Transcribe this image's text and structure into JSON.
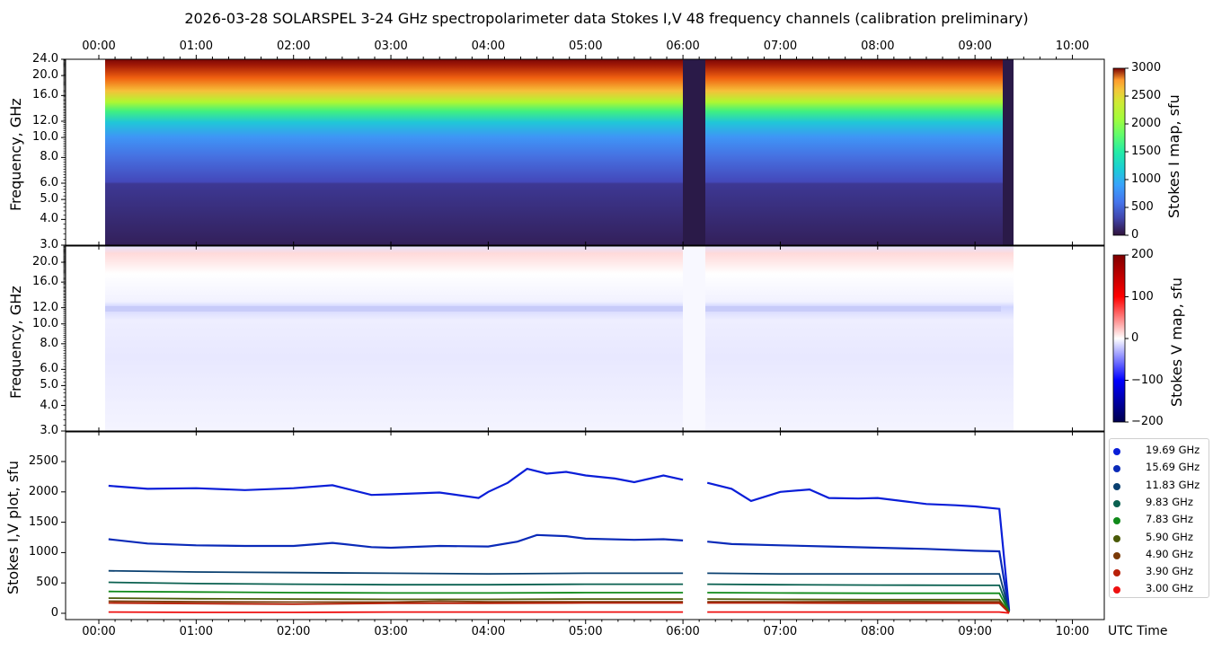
{
  "title": "2026-03-28  SOLARSPEL  3-24 GHz spectropolarimeter data   Stokes I,V   48 frequency channels   (calibration preliminary)",
  "x_axis_label": "UTC Time",
  "time_ticks": [
    "00:00",
    "01:00",
    "02:00",
    "03:00",
    "04:00",
    "05:00",
    "06:00",
    "07:00",
    "08:00",
    "09:00",
    "10:00"
  ],
  "panel1": {
    "ylabel": "Frequency, GHz",
    "yticks": [
      "3.0",
      "4.0",
      "5.0",
      "6.0",
      "8.0",
      "10.0",
      "12.0",
      "16.0",
      "20.0",
      "24.0"
    ],
    "colorbar_label": "Stokes I map, sfu",
    "colorbar_ticks": [
      "0",
      "500",
      "1000",
      "1500",
      "2000",
      "2500",
      "3000"
    ]
  },
  "panel2": {
    "ylabel": "Frequency, GHz",
    "yticks": [
      "3.0",
      "4.0",
      "5.0",
      "6.0",
      "8.0",
      "10.0",
      "12.0",
      "16.0",
      "20.0"
    ],
    "colorbar_label": "Stokes V map, sfu",
    "colorbar_ticks": [
      "200",
      "100",
      "0",
      "−100",
      "−200"
    ]
  },
  "panel3": {
    "ylabel": "Stokes I,V plot, sfu",
    "yticks": [
      "0",
      "500",
      "1000",
      "1500",
      "2000",
      "2500"
    ]
  },
  "legend": [
    {
      "label": "19.69 GHz",
      "color": "#0a1ed8"
    },
    {
      "label": "15.69 GHz",
      "color": "#0a2ab8"
    },
    {
      "label": "11.83 GHz",
      "color": "#0a4070"
    },
    {
      "label": "9.83 GHz",
      "color": "#0a6050"
    },
    {
      "label": "7.83 GHz",
      "color": "#108a1a"
    },
    {
      "label": "5.90 GHz",
      "color": "#4a5a08"
    },
    {
      "label": "4.90 GHz",
      "color": "#7a3a08"
    },
    {
      "label": "3.90 GHz",
      "color": "#b82008"
    },
    {
      "label": "3.00 GHz",
      "color": "#ee1010"
    }
  ],
  "chart_data": {
    "type": "line",
    "x_unit": "hours UTC",
    "xlim": [
      0,
      10
    ],
    "ylim": [
      0,
      2800
    ],
    "ylabel": "Stokes I,V plot, sfu",
    "data_gaps_hours": [
      [
        6.0,
        6.22
      ],
      [
        9.32,
        9.4
      ]
    ],
    "series": [
      {
        "name": "19.69 GHz",
        "x": [
          0.1,
          0.5,
          1.0,
          1.5,
          2.0,
          2.4,
          2.8,
          3.0,
          3.5,
          3.9,
          4.0,
          4.2,
          4.4,
          4.6,
          4.8,
          5.0,
          5.3,
          5.5,
          5.8,
          6.0,
          6.25,
          6.5,
          6.6,
          6.7,
          6.9,
          7.0,
          7.3,
          7.5,
          7.8,
          8.0,
          8.3,
          8.5,
          8.8,
          9.0,
          9.25,
          9.35
        ],
        "y": [
          2100,
          2050,
          2060,
          2030,
          2060,
          2110,
          1950,
          1960,
          1990,
          1900,
          2000,
          2150,
          2380,
          2300,
          2330,
          2270,
          2220,
          2160,
          2270,
          2200,
          2150,
          2050,
          1950,
          1850,
          1950,
          2000,
          2040,
          1900,
          1890,
          1900,
          1840,
          1800,
          1780,
          1760,
          1720,
          50
        ]
      },
      {
        "name": "15.69 GHz",
        "x": [
          0.1,
          0.5,
          1.0,
          1.5,
          2.0,
          2.4,
          2.8,
          3.0,
          3.5,
          4.0,
          4.3,
          4.5,
          4.8,
          5.0,
          5.5,
          5.8,
          6.0,
          6.25,
          6.5,
          7.0,
          7.5,
          8.0,
          8.5,
          9.0,
          9.25,
          9.35
        ],
        "y": [
          1220,
          1150,
          1120,
          1110,
          1110,
          1160,
          1090,
          1080,
          1110,
          1100,
          1180,
          1290,
          1270,
          1230,
          1210,
          1220,
          1200,
          1180,
          1140,
          1120,
          1100,
          1080,
          1060,
          1030,
          1020,
          40
        ]
      },
      {
        "name": "11.83 GHz",
        "x": [
          0.1,
          1.0,
          2.0,
          3.0,
          4.0,
          5.0,
          6.0,
          6.25,
          7.0,
          8.0,
          9.0,
          9.25,
          9.35
        ],
        "y": [
          700,
          680,
          670,
          660,
          650,
          660,
          660,
          660,
          650,
          650,
          650,
          650,
          30
        ]
      },
      {
        "name": "9.83 GHz",
        "x": [
          0.1,
          1.0,
          2.0,
          3.0,
          4.0,
          5.0,
          6.0,
          6.25,
          7.0,
          8.0,
          9.0,
          9.25,
          9.35
        ],
        "y": [
          510,
          490,
          480,
          470,
          470,
          480,
          480,
          480,
          470,
          465,
          460,
          460,
          25
        ]
      },
      {
        "name": "7.83 GHz",
        "x": [
          0.1,
          1.0,
          2.0,
          3.0,
          4.0,
          5.0,
          6.0,
          6.25,
          7.0,
          8.0,
          9.0,
          9.25,
          9.35
        ],
        "y": [
          360,
          350,
          340,
          335,
          335,
          340,
          340,
          340,
          335,
          330,
          330,
          330,
          20
        ]
      },
      {
        "name": "5.90 GHz",
        "x": [
          0.1,
          1.0,
          2.0,
          3.0,
          4.0,
          5.0,
          6.0,
          6.25,
          7.0,
          8.0,
          9.0,
          9.25,
          9.35
        ],
        "y": [
          250,
          240,
          235,
          230,
          230,
          235,
          235,
          235,
          230,
          225,
          225,
          225,
          15
        ]
      },
      {
        "name": "4.90 GHz",
        "x": [
          0.1,
          1.0,
          2.0,
          3.0,
          3.5,
          4.0,
          5.0,
          6.0,
          6.25,
          7.0,
          8.0,
          9.0,
          9.25,
          9.35
        ],
        "y": [
          200,
          190,
          185,
          185,
          200,
          190,
          190,
          190,
          190,
          190,
          195,
          190,
          190,
          10
        ]
      },
      {
        "name": "3.90 GHz",
        "x": [
          0.1,
          1.0,
          2.0,
          3.0,
          4.0,
          5.0,
          6.0,
          6.25,
          7.0,
          8.0,
          9.0,
          9.25,
          9.35
        ],
        "y": [
          170,
          160,
          150,
          165,
          165,
          170,
          170,
          170,
          170,
          165,
          165,
          165,
          8
        ]
      },
      {
        "name": "3.00 GHz",
        "x": [
          0.1,
          1.0,
          2.0,
          3.0,
          4.0,
          5.0,
          6.0,
          6.25,
          7.0,
          8.0,
          9.0,
          9.25,
          9.35
        ],
        "y": [
          20,
          15,
          15,
          20,
          20,
          20,
          20,
          20,
          20,
          20,
          20,
          20,
          5
        ]
      }
    ]
  }
}
